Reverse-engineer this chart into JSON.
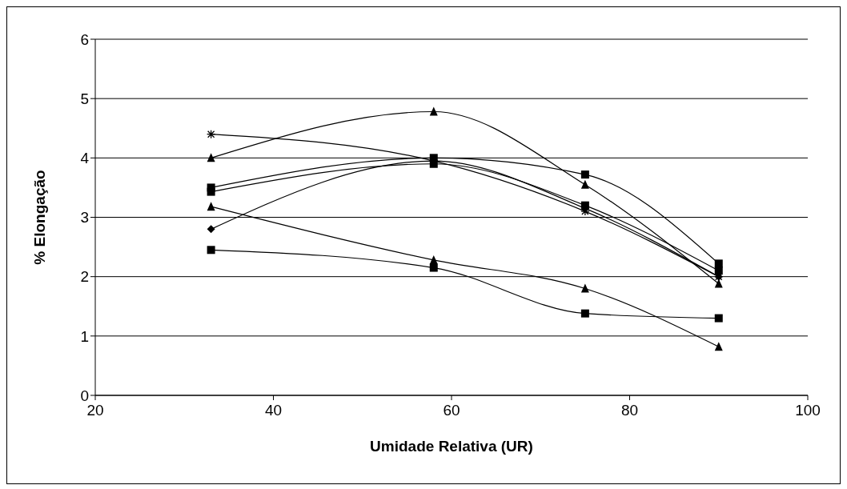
{
  "chart_data": {
    "type": "line",
    "xlabel": "Umidade Relativa (UR)",
    "ylabel": "% Elongação",
    "xlim": [
      20,
      100
    ],
    "xticks": [
      20,
      40,
      60,
      80,
      100
    ],
    "ylim": [
      0,
      6
    ],
    "yticks": [
      0,
      1,
      2,
      3,
      4,
      5,
      6
    ],
    "grid": "y",
    "legend": false,
    "line_style": "solid",
    "x": [
      33,
      58,
      75,
      90
    ],
    "series": [
      {
        "color": "#000000",
        "marker": "cross",
        "values": [
          4.4,
          3.95,
          3.1,
          2.0
        ]
      },
      {
        "color": "#000000",
        "marker": "triangle",
        "values": [
          4.0,
          4.78,
          3.55,
          1.88
        ]
      },
      {
        "color": "#000000",
        "marker": "square",
        "values": [
          3.5,
          4.0,
          3.72,
          2.22
        ]
      },
      {
        "color": "#000000",
        "marker": "square",
        "values": [
          3.43,
          3.9,
          3.2,
          2.1
        ]
      },
      {
        "color": "#000000",
        "marker": "diamond",
        "values": [
          2.8,
          3.95,
          3.15,
          2.0
        ]
      },
      {
        "color": "#000000",
        "marker": "triangle",
        "values": [
          3.18,
          2.28,
          1.8,
          0.82
        ]
      },
      {
        "color": "#000000",
        "marker": "square",
        "values": [
          2.45,
          2.15,
          1.38,
          1.3
        ]
      }
    ]
  }
}
